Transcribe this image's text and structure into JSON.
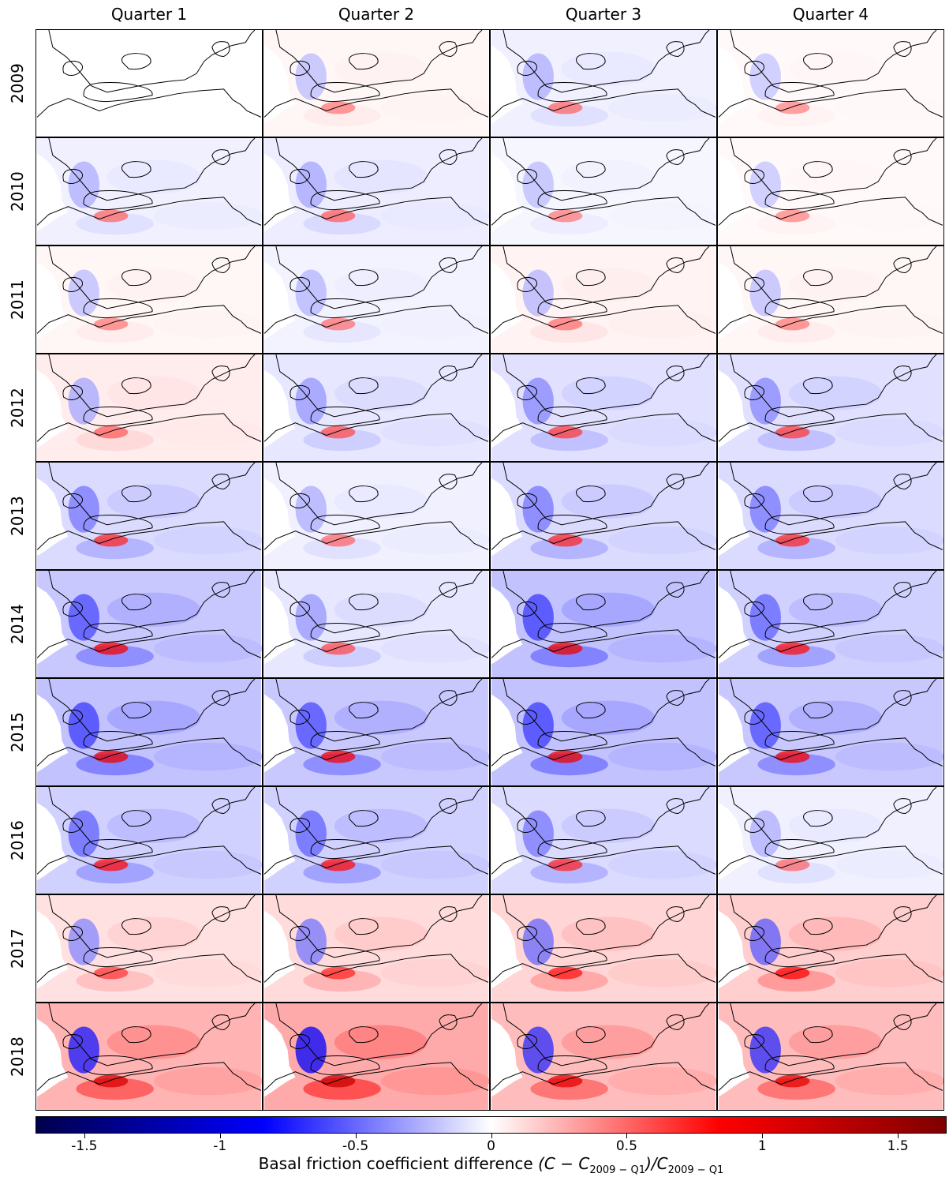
{
  "column_titles": [
    "Quarter 1",
    "Quarter 2",
    "Quarter 3",
    "Quarter 4"
  ],
  "row_labels": [
    "2009",
    "2010",
    "2011",
    "2012",
    "2013",
    "2014",
    "2015",
    "2016",
    "2017",
    "2018"
  ],
  "colorbar": {
    "title_prefix": "Basal friction coefficient difference ",
    "title_formula": "(C − C",
    "title_sub": "2009 − Q1",
    "title_mid": ")/C",
    "title_sub2": "2009 − Q1",
    "ticks": [
      -1.5,
      -1,
      -0.5,
      0,
      0.5,
      1,
      1.5
    ],
    "tick_labels": [
      "-1.5",
      "-1",
      "-0.5",
      "0",
      "0.5",
      "1",
      "1.5"
    ],
    "range": [
      -1.68,
      1.68
    ],
    "colormap": "seismic",
    "colors": {
      "low": "#00004c",
      "mid_low": "#0000ff",
      "center": "#ffffff",
      "mid_high": "#ff0000",
      "high": "#800000"
    }
  },
  "chart_data": {
    "type": "heatmap",
    "description_values": "mean relative difference per panel (approx.)",
    "years": [
      "2009",
      "2010",
      "2011",
      "2012",
      "2013",
      "2014",
      "2015",
      "2016",
      "2017",
      "2018"
    ],
    "quarters": [
      "Quarter 1",
      "Quarter 2",
      "Quarter 3",
      "Quarter 4"
    ],
    "mean_difference": [
      [
        0.0,
        0.03,
        -0.05,
        0.02
      ],
      [
        -0.05,
        -0.06,
        -0.03,
        0.02
      ],
      [
        0.03,
        -0.04,
        0.04,
        0.03
      ],
      [
        0.06,
        -0.08,
        -0.1,
        -0.1
      ],
      [
        -0.12,
        -0.05,
        -0.12,
        -0.12
      ],
      [
        -0.18,
        -0.08,
        -0.2,
        -0.15
      ],
      [
        -0.2,
        -0.18,
        -0.2,
        -0.18
      ],
      [
        -0.15,
        -0.15,
        -0.12,
        -0.05
      ],
      [
        0.1,
        0.12,
        0.14,
        0.16
      ],
      [
        0.25,
        0.28,
        0.22,
        0.22
      ]
    ],
    "colorbar_range": [
      -1.68,
      1.68
    ]
  }
}
